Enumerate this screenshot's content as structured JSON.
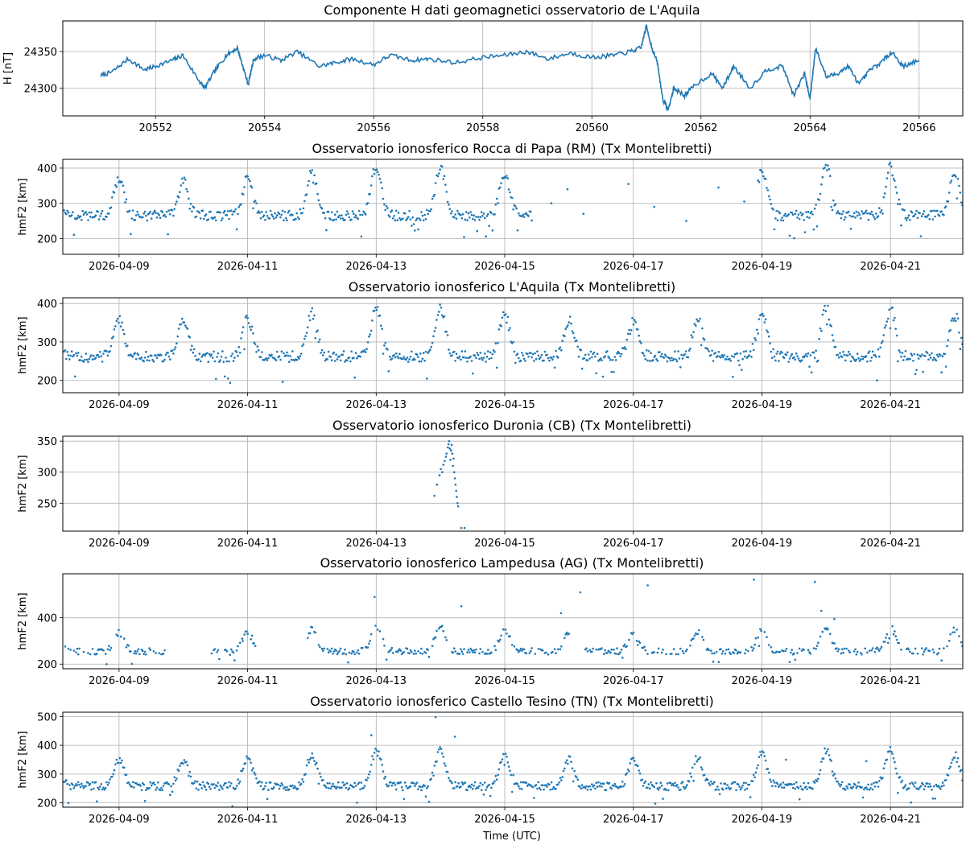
{
  "colors": {
    "series": "#1f77b4",
    "grid": "#b0b0b0",
    "axis": "#000000"
  },
  "chart_data": [
    {
      "type": "line",
      "title": "Componente H dati geomagnetici osservatorio de L'Aquila",
      "xlabel": "",
      "ylabel": "H [nT]",
      "xlim": [
        20550.3,
        20566.8
      ],
      "ylim": [
        24262,
        24392
      ],
      "xticks": [
        20552,
        20554,
        20556,
        20558,
        20560,
        20562,
        20564,
        20566
      ],
      "xtick_labels": [
        "20552",
        "20554",
        "20556",
        "20558",
        "20560",
        "20562",
        "20564",
        "20566"
      ],
      "yticks": [
        24300,
        24350
      ],
      "ytick_labels": [
        "24300",
        "24350"
      ],
      "grid": true,
      "x": [
        20551.0,
        20551.2,
        20551.5,
        20551.8,
        20552.0,
        20552.3,
        20552.5,
        20552.8,
        20552.9,
        20553.1,
        20553.3,
        20553.5,
        20553.6,
        20553.7,
        20553.8,
        20554.0,
        20554.3,
        20554.6,
        20555.0,
        20555.3,
        20555.6,
        20556.0,
        20556.3,
        20556.7,
        20557.0,
        20557.5,
        20558.0,
        20558.4,
        20558.8,
        20559.2,
        20559.6,
        20560.0,
        20560.4,
        20560.7,
        20560.9,
        20561.0,
        20561.1,
        20561.2,
        20561.3,
        20561.4,
        20561.5,
        20561.7,
        20561.9,
        20562.2,
        20562.4,
        20562.6,
        20562.9,
        20563.2,
        20563.5,
        20563.7,
        20563.9,
        20564.0,
        20564.1,
        20564.3,
        20564.5,
        20564.7,
        20564.9,
        20565.1,
        20565.3,
        20565.5,
        20565.7,
        20566.0
      ],
      "values": [
        24317,
        24322,
        24340,
        24325,
        24330,
        24338,
        24345,
        24310,
        24300,
        24325,
        24345,
        24355,
        24330,
        24305,
        24340,
        24345,
        24338,
        24350,
        24330,
        24335,
        24340,
        24332,
        24345,
        24338,
        24340,
        24335,
        24342,
        24345,
        24350,
        24340,
        24348,
        24342,
        24345,
        24350,
        24355,
        24385,
        24355,
        24335,
        24285,
        24270,
        24300,
        24290,
        24305,
        24320,
        24300,
        24330,
        24300,
        24325,
        24330,
        24290,
        24320,
        24285,
        24355,
        24315,
        24320,
        24330,
        24305,
        24325,
        24335,
        24350,
        24330,
        24338
      ]
    },
    {
      "type": "scatter",
      "title": "Osservatorio ionosferico Rocca di Papa (RM) (Tx Montelibretti)",
      "xlabel": "",
      "ylabel": "hmF2 [km]",
      "xlim": [
        0,
        14
      ],
      "ylim": [
        155,
        425
      ],
      "xticks": [
        0.875,
        2.875,
        4.875,
        6.875,
        8.875,
        10.875,
        12.875
      ],
      "xtick_labels": [
        "2026-04-09",
        "2026-04-11",
        "2026-04-13",
        "2026-04-15",
        "2026-04-17",
        "2026-04-19",
        "2026-04-21"
      ],
      "yticks": [
        200,
        300,
        400
      ],
      "ytick_labels": [
        "200",
        "300",
        "400"
      ],
      "grid": true,
      "model": {
        "base": 265,
        "peak": 385,
        "gaps": [
          [
            7.3,
            10.8
          ]
        ],
        "sparse": [
          [
            7.6,
            300
          ],
          [
            7.85,
            340
          ],
          [
            8.1,
            270
          ],
          [
            8.8,
            355
          ],
          [
            9.2,
            290
          ],
          [
            9.7,
            250
          ],
          [
            10.2,
            345
          ],
          [
            10.6,
            305
          ]
        ]
      }
    },
    {
      "type": "scatter",
      "title": "Osservatorio ionosferico L'Aquila (Tx Montelibretti)",
      "xlabel": "",
      "ylabel": "hmF2 [km]",
      "xlim": [
        0,
        14
      ],
      "ylim": [
        168,
        415
      ],
      "xticks": [
        0.875,
        2.875,
        4.875,
        6.875,
        8.875,
        10.875,
        12.875
      ],
      "xtick_labels": [
        "2026-04-09",
        "2026-04-11",
        "2026-04-13",
        "2026-04-15",
        "2026-04-17",
        "2026-04-19",
        "2026-04-21"
      ],
      "yticks": [
        200,
        300,
        400
      ],
      "ytick_labels": [
        "200",
        "300",
        "400"
      ],
      "grid": true,
      "model": {
        "base": 262,
        "peak": 370,
        "gaps": [],
        "sparse": []
      }
    },
    {
      "type": "scatter",
      "title": "Osservatorio ionosferico Duronia (CB) (Tx Montelibretti)",
      "xlabel": "",
      "ylabel": "hmF2 [km]",
      "xlim": [
        0,
        14
      ],
      "ylim": [
        205,
        358
      ],
      "xticks": [
        0.875,
        2.875,
        4.875,
        6.875,
        8.875,
        10.875,
        12.875
      ],
      "xtick_labels": [
        "2026-04-09",
        "2026-04-11",
        "2026-04-13",
        "2026-04-15",
        "2026-04-17",
        "2026-04-19",
        "2026-04-21"
      ],
      "yticks": [
        250,
        300,
        350
      ],
      "ytick_labels": [
        "250",
        "300",
        "350"
      ],
      "grid": true,
      "points": [
        [
          5.78,
          262
        ],
        [
          5.82,
          280
        ],
        [
          5.86,
          295
        ],
        [
          5.88,
          305
        ],
        [
          5.9,
          300
        ],
        [
          5.92,
          312
        ],
        [
          5.94,
          318
        ],
        [
          5.96,
          325
        ],
        [
          5.97,
          330
        ],
        [
          5.99,
          340
        ],
        [
          6.0,
          345
        ],
        [
          6.01,
          350
        ],
        [
          6.02,
          338
        ],
        [
          6.03,
          320
        ],
        [
          6.04,
          335
        ],
        [
          6.05,
          344
        ],
        [
          6.06,
          330
        ],
        [
          6.07,
          310
        ],
        [
          6.08,
          322
        ],
        [
          6.09,
          300
        ],
        [
          6.1,
          290
        ],
        [
          6.11,
          280
        ],
        [
          6.12,
          270
        ],
        [
          6.13,
          260
        ],
        [
          6.14,
          250
        ],
        [
          6.15,
          245
        ],
        [
          6.2,
          210
        ],
        [
          6.25,
          210
        ]
      ]
    },
    {
      "type": "scatter",
      "title": "Osservatorio ionosferico Lampedusa (AG) (Tx Montelibretti)",
      "xlabel": "",
      "ylabel": "hmF2 [km]",
      "xlim": [
        0,
        14
      ],
      "ylim": [
        180,
        590
      ],
      "xticks": [
        0.875,
        2.875,
        4.875,
        6.875,
        8.875,
        10.875,
        12.875
      ],
      "xtick_labels": [
        "2026-04-09",
        "2026-04-11",
        "2026-04-13",
        "2026-04-15",
        "2026-04-17",
        "2026-04-19",
        "2026-04-21"
      ],
      "yticks": [
        200,
        400
      ],
      "ytick_labels": [
        "200",
        "400"
      ],
      "grid": true,
      "model": {
        "base": 255,
        "peak": 345,
        "gaps": [
          [
            1.6,
            2.3
          ],
          [
            3.0,
            3.8
          ],
          [
            7.9,
            8.1
          ]
        ],
        "sparse": [
          [
            4.85,
            490
          ],
          [
            6.2,
            450
          ],
          [
            7.75,
            420
          ],
          [
            8.05,
            510
          ],
          [
            9.1,
            540
          ],
          [
            10.75,
            565
          ],
          [
            11.7,
            555
          ],
          [
            11.8,
            430
          ],
          [
            12.0,
            395
          ],
          [
            2.6,
            240
          ],
          [
            2.8,
            300
          ]
        ]
      }
    },
    {
      "type": "scatter",
      "title": "Osservatorio ionosferico Castello Tesino (TN) (Tx Montelibretti)",
      "xlabel": "Time (UTC)",
      "ylabel": "hmF2 [km]",
      "xlim": [
        0,
        14
      ],
      "ylim": [
        185,
        515
      ],
      "xticks": [
        0.875,
        2.875,
        4.875,
        6.875,
        8.875,
        10.875,
        12.875
      ],
      "xtick_labels": [
        "2026-04-09",
        "2026-04-11",
        "2026-04-13",
        "2026-04-15",
        "2026-04-17",
        "2026-04-19",
        "2026-04-21"
      ],
      "yticks": [
        200,
        300,
        400,
        500
      ],
      "ytick_labels": [
        "200",
        "300",
        "400",
        "500"
      ],
      "grid": true,
      "model": {
        "base": 258,
        "peak": 365,
        "gaps": [],
        "sparse": [
          [
            4.8,
            435
          ],
          [
            5.8,
            498
          ],
          [
            6.1,
            430
          ],
          [
            11.25,
            350
          ],
          [
            12.5,
            345
          ]
        ]
      }
    }
  ]
}
